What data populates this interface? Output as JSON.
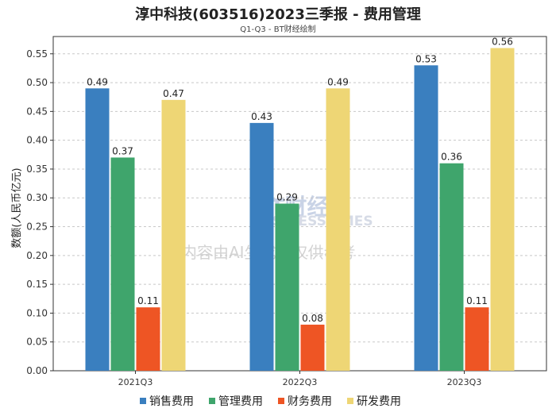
{
  "title": "淳中科技(603516)2023三季报 - 费用管理",
  "subtitle": "Q1-Q3 - BT财经绘制",
  "watermark": {
    "logo_text": "BT财经",
    "logo_sub": "BUSINESSTIMES",
    "notice": "内容由AI生成，仅供参考"
  },
  "colors": {
    "销售费用": "#3a7fbf",
    "管理费用": "#3fa56c",
    "财务费用": "#ee5524",
    "研发费用": "#eed675"
  },
  "chart_data": {
    "type": "bar",
    "title": "淳中科技(603516)2023三季报 - 费用管理",
    "subtitle": "Q1-Q3 - BT财经绘制",
    "xlabel": "",
    "ylabel": "数额(人民币亿元)",
    "ylim": [
      0,
      0.58
    ],
    "yticks": [
      0.0,
      0.05,
      0.1,
      0.15,
      0.2,
      0.25,
      0.3,
      0.35,
      0.4,
      0.45,
      0.5,
      0.55
    ],
    "categories": [
      "2021Q3",
      "2022Q3",
      "2023Q3"
    ],
    "series": [
      {
        "name": "销售费用",
        "values": [
          0.49,
          0.43,
          0.53
        ]
      },
      {
        "name": "管理费用",
        "values": [
          0.37,
          0.29,
          0.36
        ]
      },
      {
        "name": "财务费用",
        "values": [
          0.11,
          0.08,
          0.11
        ]
      },
      {
        "name": "研发费用",
        "values": [
          0.47,
          0.49,
          0.56
        ]
      }
    ],
    "grid": true,
    "legend_position": "bottom"
  }
}
